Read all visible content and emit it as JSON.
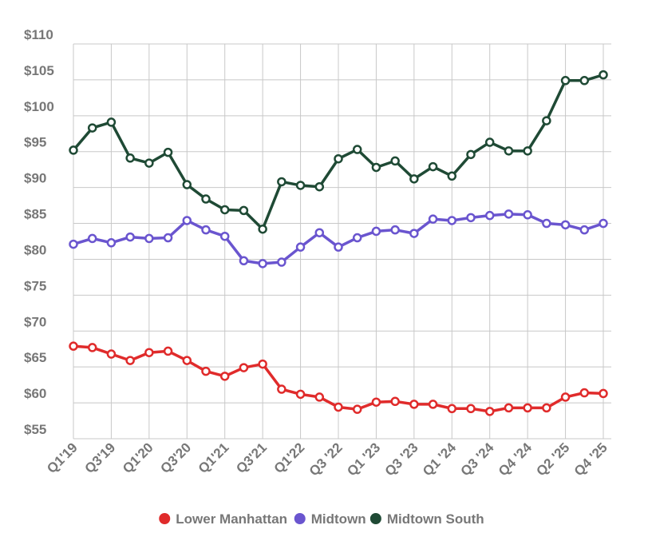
{
  "chart_data": {
    "type": "line",
    "categories": [
      "Q1'19",
      null,
      "Q3'19",
      null,
      "Q1'20",
      null,
      "Q3'20",
      null,
      "Q1'21",
      null,
      "Q3'21",
      null,
      "Q1'22",
      null,
      "Q3 '22",
      null,
      "Q1 '23",
      null,
      "Q3 '23",
      null,
      "Q1 '24",
      null,
      "Q3 '24",
      null,
      "Q4 '24",
      null,
      "Q2 '25",
      null,
      "Q4 '25"
    ],
    "series": [
      {
        "name": "Lower Manhattan",
        "color": "#e02b2b",
        "values": [
          67.9,
          67.7,
          66.8,
          65.9,
          67.0,
          67.2,
          65.9,
          64.4,
          63.7,
          64.9,
          65.4,
          61.9,
          61.2,
          60.8,
          59.4,
          59.1,
          60.1,
          60.2,
          59.8,
          59.8,
          59.2,
          59.2,
          58.8,
          59.3,
          59.3,
          59.3,
          60.8,
          61.4,
          61.3
        ]
      },
      {
        "name": "Midtown",
        "color": "#6a55cf",
        "values": [
          82.1,
          82.9,
          82.3,
          83.1,
          82.9,
          83.0,
          85.4,
          84.1,
          83.2,
          79.8,
          79.4,
          79.6,
          81.7,
          83.7,
          81.7,
          83.0,
          83.9,
          84.1,
          83.6,
          85.6,
          85.4,
          85.8,
          86.1,
          86.3,
          86.2,
          85.0,
          84.8,
          84.1,
          85.0
        ]
      },
      {
        "name": "Midtown South",
        "color": "#1f4a35",
        "values": [
          95.2,
          98.3,
          99.1,
          94.1,
          93.4,
          94.9,
          90.4,
          88.4,
          86.9,
          86.8,
          84.2,
          90.8,
          90.3,
          90.1,
          94.0,
          95.3,
          92.8,
          93.7,
          91.2,
          92.9,
          91.6,
          94.6,
          96.3,
          95.1,
          95.1,
          99.3,
          104.9,
          104.9,
          105.7
        ]
      }
    ],
    "ylim": [
      55,
      110
    ],
    "yticks": [
      {
        "value": 55,
        "label": "$55"
      },
      {
        "value": 60,
        "label": "$60"
      },
      {
        "value": 65,
        "label": "$65"
      },
      {
        "value": 70,
        "label": "$70"
      },
      {
        "value": 75,
        "label": "$75"
      },
      {
        "value": 80,
        "label": "$80"
      },
      {
        "value": 85,
        "label": "$85"
      },
      {
        "value": 90,
        "label": "$90"
      },
      {
        "value": 95,
        "label": "$95"
      },
      {
        "value": 100,
        "label": "$100"
      },
      {
        "value": 105,
        "label": "$105"
      },
      {
        "value": 110,
        "label": "$110"
      }
    ],
    "grid": true,
    "legend": "bottom"
  }
}
